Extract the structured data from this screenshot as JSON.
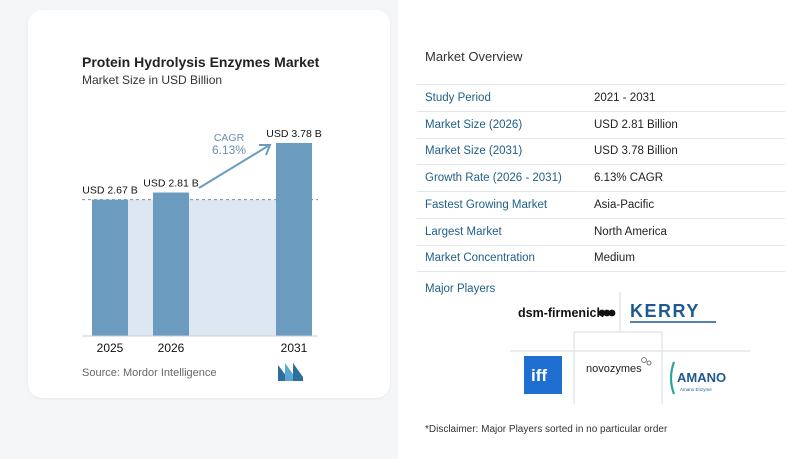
{
  "chart_data": {
    "type": "bar",
    "title": "Protein Hydrolysis Enzymes Market",
    "subtitle": "Market Size in USD Billion",
    "categories": [
      "2025",
      "2026",
      "2031"
    ],
    "values": [
      2.67,
      2.81,
      3.78
    ],
    "data_labels": [
      "USD 2.67 B",
      "USD 2.81 B",
      "USD 3.78 B"
    ],
    "ylim": [
      0,
      3.78
    ],
    "annotation": {
      "label": "CAGR",
      "value": "6.13%"
    },
    "bar_color": "#6b9cc0",
    "shade_color": "#dde7f1",
    "grid": false
  },
  "source": "Source:  Mordor Intelligence",
  "overview": {
    "title": "Market Overview",
    "rows": [
      {
        "label": "Study Period",
        "value": "2021 - 2031"
      },
      {
        "label": "Market Size (2026)",
        "value": "USD 2.81 Billion"
      },
      {
        "label": "Market Size (2031)",
        "value": "USD 3.78 Billion"
      },
      {
        "label": "Growth Rate (2026 - 2031)",
        "value": "6.13% CAGR"
      },
      {
        "label": "Fastest Growing Market",
        "value": "Asia-Pacific"
      },
      {
        "label": "Largest Market",
        "value": "North America"
      },
      {
        "label": "Market Concentration",
        "value": "Medium"
      }
    ],
    "players_label": "Major Players",
    "players": [
      "dsm-firmenich",
      "KERRY",
      "iff",
      "novozymes",
      "AMANO",
      "Amano Enzyme"
    ]
  },
  "disclaimer": "*Disclaimer: Major Players sorted in no particular order",
  "colors": {
    "accent": "#1f5f86",
    "label": "#1f5f86"
  }
}
